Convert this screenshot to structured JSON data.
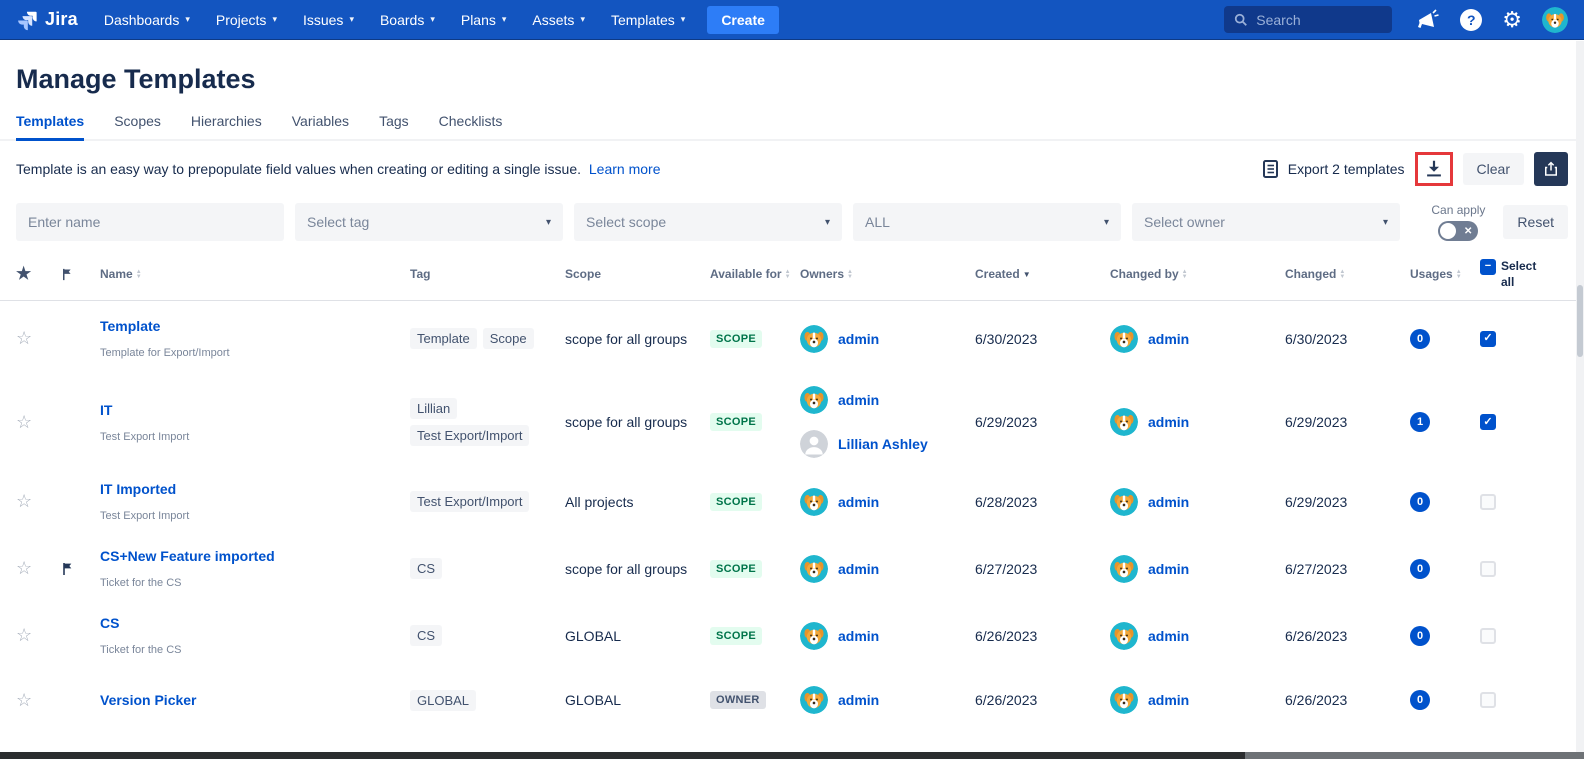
{
  "nav": {
    "brand": "Jira",
    "items": [
      "Dashboards",
      "Projects",
      "Issues",
      "Boards",
      "Plans",
      "Assets",
      "Templates"
    ],
    "create_label": "Create",
    "search_placeholder": "Search"
  },
  "page": {
    "title": "Manage Templates",
    "tabs": [
      {
        "label": "Templates",
        "active": true
      },
      {
        "label": "Scopes",
        "active": false
      },
      {
        "label": "Hierarchies",
        "active": false
      },
      {
        "label": "Variables",
        "active": false
      },
      {
        "label": "Tags",
        "active": false
      },
      {
        "label": "Checklists",
        "active": false
      }
    ],
    "description": "Template is an easy way to prepopulate field values when creating or editing a single issue.",
    "learn_more_label": "Learn more"
  },
  "toolbar": {
    "export_label": "Export 2 templates",
    "clear_label": "Clear"
  },
  "filters": {
    "name_placeholder": "Enter name",
    "tag_placeholder": "Select tag",
    "scope_placeholder": "Select scope",
    "type_value": "ALL",
    "owner_placeholder": "Select owner",
    "can_apply_label": "Can apply",
    "reset_label": "Reset"
  },
  "table": {
    "headers": {
      "name": "Name",
      "tag": "Tag",
      "scope": "Scope",
      "available_for": "Available for",
      "owners": "Owners",
      "created": "Created",
      "changed_by": "Changed by",
      "changed": "Changed",
      "usages": "Usages",
      "select_all": "Select all"
    },
    "rows": [
      {
        "name": "Template",
        "description": "Template for Export/Import",
        "tags": [
          "Template",
          "Scope"
        ],
        "scope": "scope for all groups",
        "available_for": "SCOPE",
        "owners": [
          {
            "name": "admin",
            "avatar": "dog"
          }
        ],
        "created": "6/30/2023",
        "changed_by": {
          "name": "admin",
          "avatar": "dog"
        },
        "changed": "6/30/2023",
        "usages": "0",
        "selected": true,
        "flagged": false
      },
      {
        "name": "IT",
        "description": "Test Export Import",
        "tags": [
          "Lillian",
          "Test Export/Import"
        ],
        "scope": "scope for all groups",
        "available_for": "SCOPE",
        "owners": [
          {
            "name": "admin",
            "avatar": "dog"
          },
          {
            "name": "Lillian Ashley",
            "avatar": "person"
          }
        ],
        "created": "6/29/2023",
        "changed_by": {
          "name": "admin",
          "avatar": "dog"
        },
        "changed": "6/29/2023",
        "usages": "1",
        "selected": true,
        "flagged": false
      },
      {
        "name": "IT Imported",
        "description": "Test Export Import",
        "tags": [
          "Test Export/Import"
        ],
        "scope": "All projects",
        "available_for": "SCOPE",
        "owners": [
          {
            "name": "admin",
            "avatar": "dog"
          }
        ],
        "created": "6/28/2023",
        "changed_by": {
          "name": "admin",
          "avatar": "dog"
        },
        "changed": "6/29/2023",
        "usages": "0",
        "selected": false,
        "flagged": false
      },
      {
        "name": "CS+New Feature imported",
        "description": "Ticket for the CS",
        "tags": [
          "CS"
        ],
        "scope": "scope for all groups",
        "available_for": "SCOPE",
        "owners": [
          {
            "name": "admin",
            "avatar": "dog"
          }
        ],
        "created": "6/27/2023",
        "changed_by": {
          "name": "admin",
          "avatar": "dog"
        },
        "changed": "6/27/2023",
        "usages": "0",
        "selected": false,
        "flagged": true
      },
      {
        "name": "CS",
        "description": "Ticket for the CS",
        "tags": [
          "CS"
        ],
        "scope": "GLOBAL",
        "available_for": "SCOPE",
        "owners": [
          {
            "name": "admin",
            "avatar": "dog"
          }
        ],
        "created": "6/26/2023",
        "changed_by": {
          "name": "admin",
          "avatar": "dog"
        },
        "changed": "6/26/2023",
        "usages": "0",
        "selected": false,
        "flagged": false
      },
      {
        "name": "Version Picker",
        "description": "",
        "tags": [
          "GLOBAL"
        ],
        "scope": "GLOBAL",
        "available_for": "OWNER",
        "owners": [
          {
            "name": "admin",
            "avatar": "dog"
          }
        ],
        "created": "6/26/2023",
        "changed_by": {
          "name": "admin",
          "avatar": "dog"
        },
        "changed": "6/26/2023",
        "usages": "0",
        "selected": false,
        "flagged": false
      }
    ]
  },
  "icons": {
    "gear": "⚙",
    "help": "?",
    "star_outline": "☆",
    "star_filled": "★",
    "check": "✓",
    "minus": "−",
    "chevron_down": "▾",
    "toggle_x": "✕",
    "sort_up": "▲",
    "sort_down": "▼"
  },
  "colors": {
    "nav_bg": "#1355C0",
    "accent_blue": "#0052CC",
    "scope_badge_bg": "#E3FCEF",
    "scope_badge_text": "#00744A",
    "owner_badge_bg": "#DFE1E6",
    "owner_badge_text": "#42526E",
    "highlight_red": "#E5383B",
    "dark_navy": "#253858"
  }
}
